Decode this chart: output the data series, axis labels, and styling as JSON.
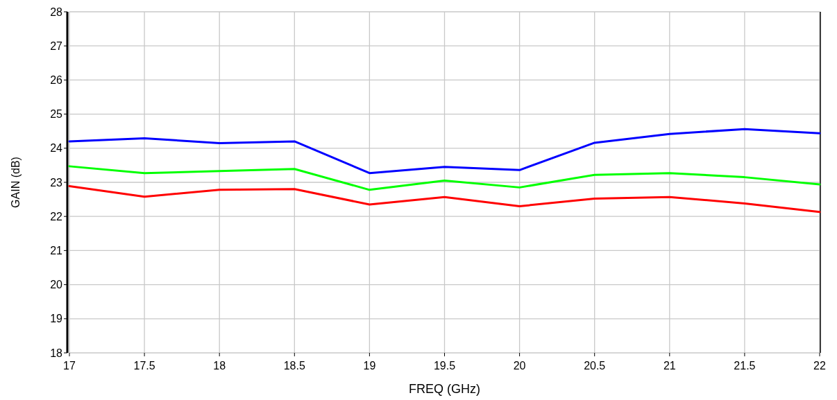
{
  "chart_data": {
    "type": "line",
    "xlabel": "FREQ (GHz)",
    "ylabel": "GAIN (dB)",
    "x": [
      17,
      17.5,
      18,
      18.5,
      19,
      19.5,
      20,
      20.5,
      21,
      21.5,
      22
    ],
    "xlim": [
      17,
      22
    ],
    "xticks": [
      17,
      17.5,
      18,
      18.5,
      19,
      19.5,
      20,
      20.5,
      21,
      21.5,
      22
    ],
    "ylim": [
      18,
      28
    ],
    "yticks": [
      18,
      19,
      20,
      21,
      22,
      23,
      24,
      25,
      26,
      27,
      28
    ],
    "grid": true,
    "marker": "none",
    "line_style": "solid",
    "series": [
      {
        "color": "#0000ff",
        "values": [
          24.2,
          24.29,
          24.15,
          24.2,
          23.27,
          23.45,
          23.36,
          24.16,
          24.42,
          24.56,
          24.44
        ]
      },
      {
        "color": "#00ff00",
        "values": [
          23.47,
          23.27,
          23.33,
          23.39,
          22.78,
          23.05,
          22.85,
          23.22,
          23.27,
          23.15,
          22.94
        ]
      },
      {
        "color": "#ff0000",
        "values": [
          22.89,
          22.58,
          22.78,
          22.8,
          22.35,
          22.57,
          22.3,
          22.52,
          22.57,
          22.38,
          22.13
        ]
      }
    ]
  }
}
